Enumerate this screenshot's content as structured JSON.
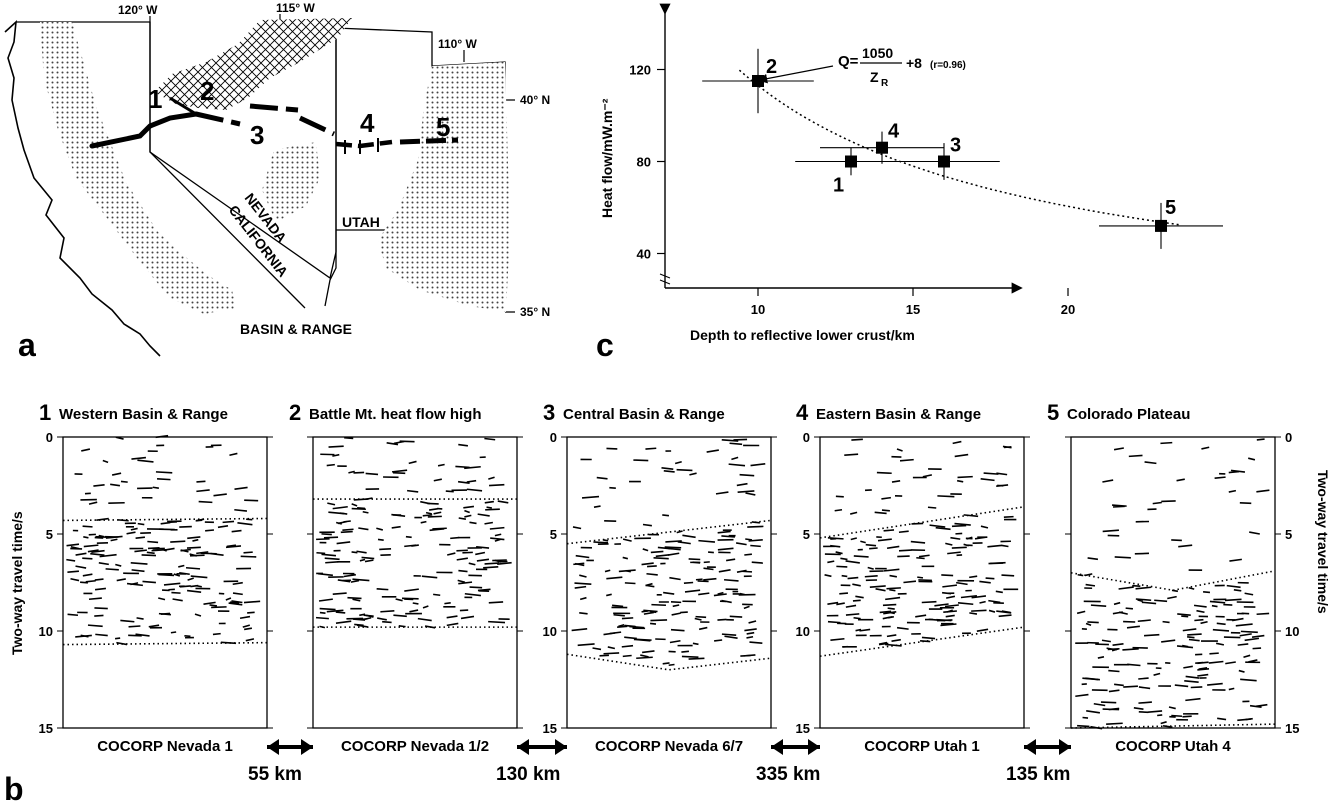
{
  "panel_letters": {
    "a": "a",
    "b": "b",
    "c": "c"
  },
  "map": {
    "lon_labels": [
      "120° W",
      "115° W",
      "110° W"
    ],
    "lat_labels": [
      "40° N",
      "35° N"
    ],
    "state_labels": [
      "NEVADA",
      "CALIFORNIA",
      "UTAH"
    ],
    "region_label": "BASIN & RANGE",
    "profile_numbers": [
      "1",
      "2",
      "3",
      "4",
      "5"
    ]
  },
  "chart_data": {
    "type": "scatter",
    "xlabel": "Depth to reflective lower crust/km",
    "ylabel": "Heat flow/mW.m⁻²",
    "x_ticks": [
      "10",
      "15",
      "20"
    ],
    "y_ticks": [
      "40",
      "80",
      "120"
    ],
    "xlim": [
      7,
      24
    ],
    "ylim": [
      25,
      130
    ],
    "points": [
      {
        "label": "1",
        "x": 13,
        "y": 80,
        "xerr": 1.8,
        "yerr": 6
      },
      {
        "label": "2",
        "x": 10,
        "y": 115,
        "xerr": 1.8,
        "yerr": 14
      },
      {
        "label": "3",
        "x": 16,
        "y": 80,
        "xerr": 1.8,
        "yerr": 8
      },
      {
        "label": "4",
        "x": 14,
        "y": 86,
        "xerr": 2.0,
        "yerr": 7
      },
      {
        "label": "5",
        "x": 23,
        "y": 52,
        "xerr": 2.0,
        "yerr": 10
      }
    ],
    "fit_annotation": {
      "lhs": "Q=",
      "numerator": "1050",
      "denominator": "Z",
      "subscript": "R",
      "rhs": "+8",
      "note": "(r=0.96)"
    },
    "fit": {
      "a": 1050,
      "b": 8
    }
  },
  "seismic": {
    "ylabel": "Two-way travel time/s",
    "y_ticks": [
      "0",
      "5",
      "10",
      "15"
    ],
    "panels": [
      {
        "num": "1",
        "title": "Western Basin & Range",
        "survey": "COCORP Nevada 1"
      },
      {
        "num": "2",
        "title": "Battle Mt. heat flow high",
        "survey": "COCORP Nevada 1/2"
      },
      {
        "num": "3",
        "title": "Central Basin & Range",
        "survey": "COCORP Nevada 6/7"
      },
      {
        "num": "4",
        "title": "Eastern Basin & Range",
        "survey": "COCORP Utah 1"
      },
      {
        "num": "5",
        "title": "Colorado Plateau",
        "survey": "COCORP Utah 4"
      }
    ],
    "distances": [
      "55 km",
      "130 km",
      "335 km",
      "135 km"
    ]
  }
}
